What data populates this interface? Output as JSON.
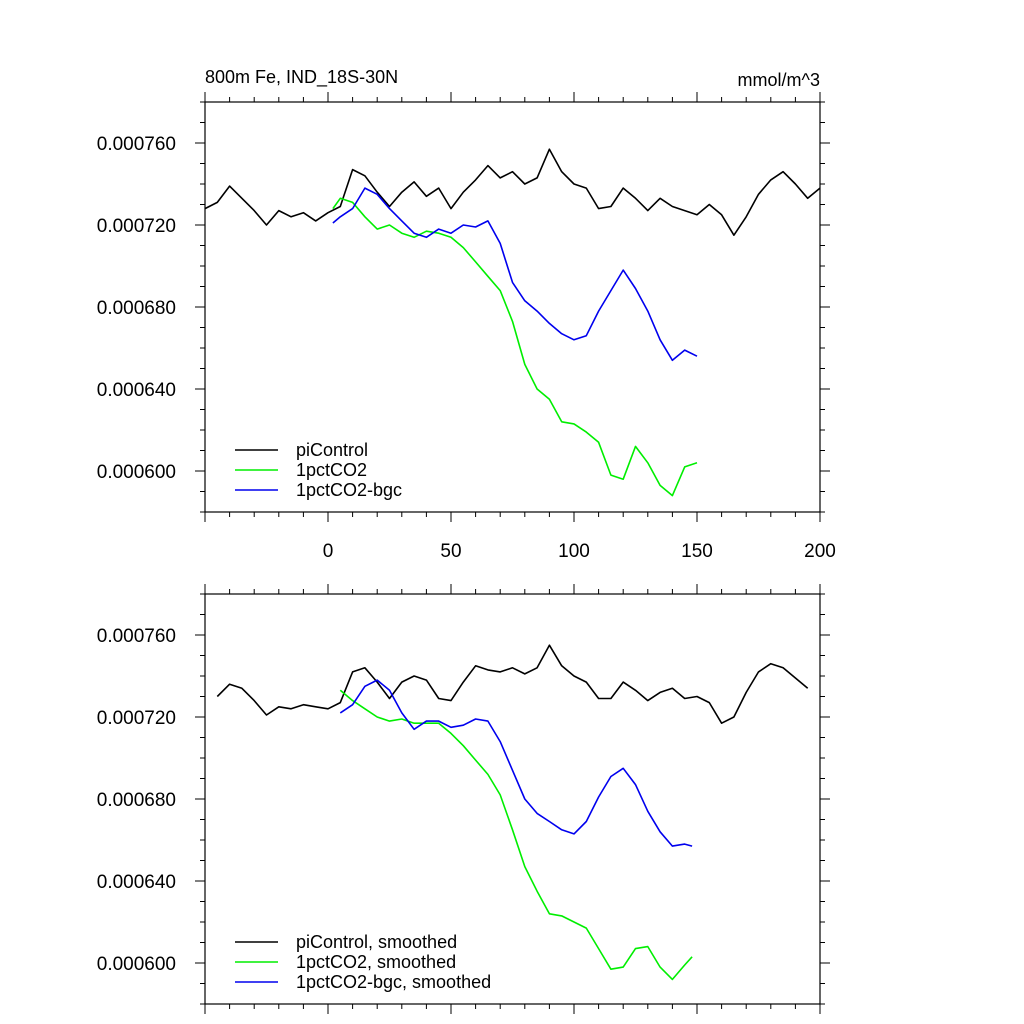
{
  "chart_data": [
    {
      "type": "line",
      "title": "800m Fe, IND_18S-30N",
      "units": "mmol/m^3",
      "xlim": [
        -50,
        200
      ],
      "ylim": [
        0.00058,
        0.00078
      ],
      "x_ticks": [
        0,
        50,
        100,
        150,
        200
      ],
      "y_ticks": [
        "0.000760",
        "0.000720",
        "0.000680",
        "0.000640",
        "0.000600"
      ],
      "y_tick_values": [
        0.00076,
        0.00072,
        0.00068,
        0.00064,
        0.0006
      ],
      "show_x_labels": true,
      "legend_position": "bottom-left",
      "series": [
        {
          "name": "piControl",
          "color": "#000000",
          "x": [
            -50,
            -45,
            -40,
            -35,
            -30,
            -25,
            -20,
            -15,
            -10,
            -5,
            0,
            5,
            10,
            15,
            20,
            25,
            30,
            35,
            40,
            45,
            50,
            55,
            60,
            65,
            70,
            75,
            80,
            85,
            90,
            95,
            100,
            105,
            110,
            115,
            120,
            125,
            130,
            135,
            140,
            145,
            150,
            155,
            160,
            165,
            170,
            175,
            180,
            185,
            190,
            195,
            200
          ],
          "y": [
            0.000728,
            0.000731,
            0.000739,
            0.000733,
            0.000727,
            0.00072,
            0.000727,
            0.000724,
            0.000726,
            0.000722,
            0.000726,
            0.000729,
            0.000747,
            0.000744,
            0.000736,
            0.000729,
            0.000736,
            0.000741,
            0.000734,
            0.000738,
            0.000728,
            0.000736,
            0.000742,
            0.000749,
            0.000743,
            0.000746,
            0.00074,
            0.000743,
            0.000757,
            0.000746,
            0.00074,
            0.000738,
            0.000728,
            0.000729,
            0.000738,
            0.000733,
            0.000727,
            0.000733,
            0.000729,
            0.000727,
            0.000725,
            0.00073,
            0.000725,
            0.000715,
            0.000724,
            0.000735,
            0.000742,
            0.000746,
            0.00074,
            0.000733,
            0.000738
          ]
        },
        {
          "name": "1pctCO2",
          "color": "#00ee00",
          "x": [
            2,
            5,
            10,
            15,
            20,
            25,
            30,
            35,
            40,
            45,
            50,
            55,
            60,
            65,
            70,
            75,
            80,
            85,
            90,
            95,
            100,
            105,
            110,
            115,
            120,
            125,
            130,
            135,
            140,
            145,
            150
          ],
          "y": [
            0.000728,
            0.000733,
            0.000731,
            0.000724,
            0.000718,
            0.00072,
            0.000716,
            0.000714,
            0.000717,
            0.000716,
            0.000714,
            0.000709,
            0.000702,
            0.000695,
            0.000688,
            0.000673,
            0.000652,
            0.00064,
            0.000635,
            0.000624,
            0.000623,
            0.000619,
            0.000614,
            0.000598,
            0.000596,
            0.000612,
            0.000604,
            0.000593,
            0.000588,
            0.000602,
            0.000604
          ]
        },
        {
          "name": "1pctCO2-bgc",
          "color": "#0000ee",
          "x": [
            2,
            5,
            10,
            15,
            20,
            25,
            30,
            35,
            40,
            45,
            50,
            55,
            60,
            65,
            70,
            75,
            80,
            85,
            90,
            95,
            100,
            105,
            110,
            115,
            120,
            125,
            130,
            135,
            140,
            145,
            150
          ],
          "y": [
            0.000721,
            0.000724,
            0.000728,
            0.000738,
            0.000735,
            0.000728,
            0.000722,
            0.000716,
            0.000714,
            0.000718,
            0.000716,
            0.00072,
            0.000719,
            0.000722,
            0.000711,
            0.000692,
            0.000683,
            0.000678,
            0.000672,
            0.000667,
            0.000664,
            0.000666,
            0.000678,
            0.000688,
            0.000698,
            0.000689,
            0.000678,
            0.000664,
            0.000654,
            0.000659,
            0.000656
          ]
        }
      ]
    },
    {
      "type": "line",
      "xlim": [
        -50,
        200
      ],
      "ylim": [
        0.00058,
        0.00078
      ],
      "x_ticks": [
        0,
        50,
        100,
        150,
        200
      ],
      "y_ticks": [
        "0.000760",
        "0.000720",
        "0.000680",
        "0.000640",
        "0.000600"
      ],
      "y_tick_values": [
        0.00076,
        0.00072,
        0.00068,
        0.00064,
        0.0006
      ],
      "show_x_labels": false,
      "legend_position": "bottom-left",
      "series": [
        {
          "name": "piControl, smoothed",
          "color": "#000000",
          "x": [
            -45,
            -40,
            -35,
            -30,
            -25,
            -20,
            -15,
            -10,
            -5,
            0,
            5,
            10,
            15,
            20,
            25,
            30,
            35,
            40,
            45,
            50,
            55,
            60,
            65,
            70,
            75,
            80,
            85,
            90,
            95,
            100,
            105,
            110,
            115,
            120,
            125,
            130,
            135,
            140,
            145,
            150,
            155,
            160,
            165,
            170,
            175,
            180,
            185,
            190,
            195
          ],
          "y": [
            0.00073,
            0.000736,
            0.000734,
            0.000728,
            0.000721,
            0.000725,
            0.000724,
            0.000726,
            0.000725,
            0.000724,
            0.000727,
            0.000742,
            0.000744,
            0.000737,
            0.000729,
            0.000737,
            0.00074,
            0.000738,
            0.000729,
            0.000728,
            0.000737,
            0.000745,
            0.000743,
            0.000742,
            0.000744,
            0.000741,
            0.000744,
            0.000755,
            0.000745,
            0.00074,
            0.000737,
            0.000729,
            0.000729,
            0.000737,
            0.000733,
            0.000728,
            0.000732,
            0.000734,
            0.000729,
            0.00073,
            0.000727,
            0.000717,
            0.00072,
            0.000732,
            0.000742,
            0.000746,
            0.000744,
            0.000739,
            0.000734
          ]
        },
        {
          "name": "1pctCO2, smoothed",
          "color": "#00ee00",
          "x": [
            5,
            10,
            15,
            20,
            25,
            30,
            35,
            40,
            45,
            50,
            55,
            60,
            65,
            70,
            75,
            80,
            85,
            90,
            95,
            100,
            105,
            110,
            115,
            120,
            125,
            130,
            135,
            140,
            145,
            148
          ],
          "y": [
            0.000733,
            0.000728,
            0.000724,
            0.00072,
            0.000718,
            0.000719,
            0.000717,
            0.000717,
            0.000717,
            0.000712,
            0.000706,
            0.000699,
            0.000692,
            0.000682,
            0.000665,
            0.000647,
            0.000635,
            0.000624,
            0.000623,
            0.00062,
            0.000617,
            0.000607,
            0.000597,
            0.000598,
            0.000607,
            0.000608,
            0.000598,
            0.000592,
            0.000599,
            0.000603
          ]
        },
        {
          "name": "1pctCO2-bgc, smoothed",
          "color": "#0000ee",
          "x": [
            5,
            10,
            15,
            20,
            25,
            30,
            35,
            40,
            45,
            50,
            55,
            60,
            65,
            70,
            75,
            80,
            85,
            90,
            95,
            100,
            105,
            110,
            115,
            120,
            125,
            130,
            135,
            140,
            145,
            148
          ],
          "y": [
            0.000722,
            0.000726,
            0.000735,
            0.000738,
            0.000733,
            0.000722,
            0.000714,
            0.000718,
            0.000718,
            0.000715,
            0.000716,
            0.000719,
            0.000718,
            0.000708,
            0.000694,
            0.00068,
            0.000673,
            0.000669,
            0.000665,
            0.000663,
            0.000669,
            0.000681,
            0.000691,
            0.000695,
            0.000687,
            0.000674,
            0.000664,
            0.000657,
            0.000658,
            0.000657
          ]
        }
      ]
    }
  ]
}
